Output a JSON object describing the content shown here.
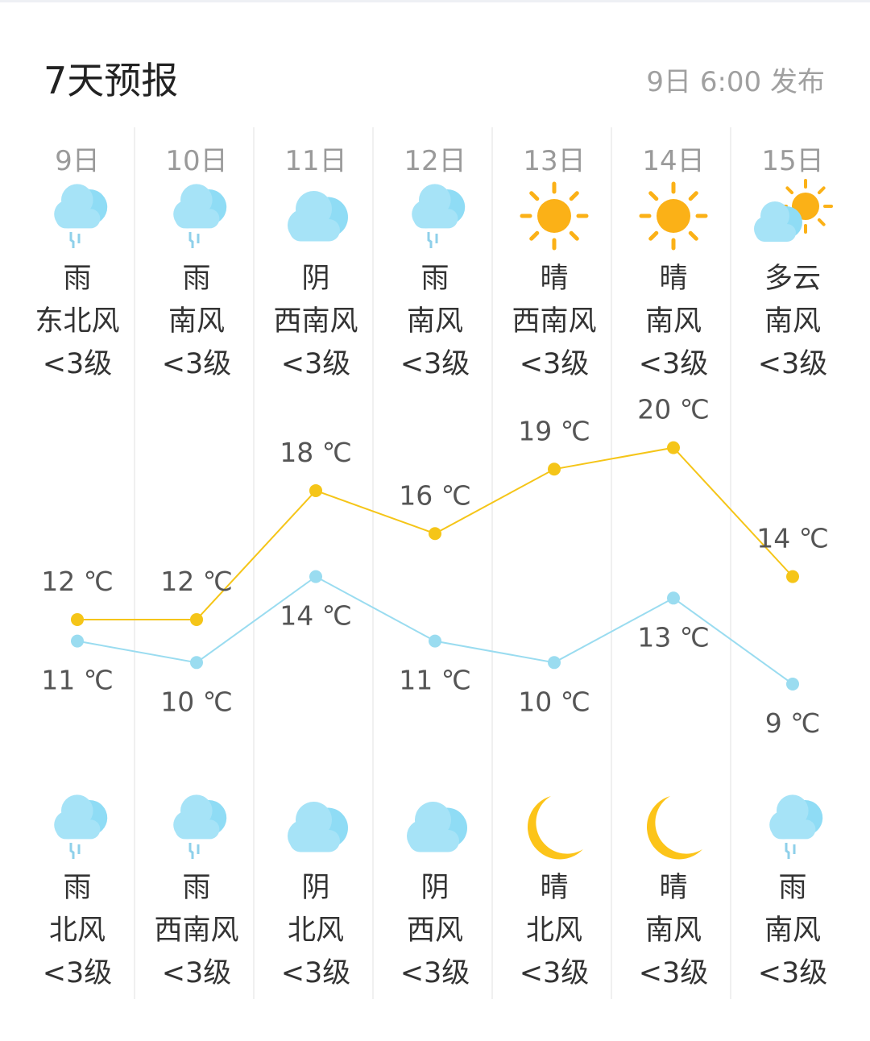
{
  "header": {
    "title": "7天预报",
    "published": "9日 6:00 发布"
  },
  "colors": {
    "high_line": "#f5c518",
    "low_line": "#9adcf0",
    "sun": "#fbb117",
    "cloud": "#a6e3f7",
    "moon": "#fcc419"
  },
  "days": [
    {
      "date": "9日",
      "day": {
        "icon": "rain-icon",
        "weather": "雨",
        "wind": "东北风",
        "level": "<3级"
      },
      "night": {
        "icon": "rain-icon",
        "weather": "雨",
        "wind": "北风",
        "level": "<3级"
      },
      "high": 12,
      "high_label": "12 ℃",
      "low": 11,
      "low_label": "11 ℃"
    },
    {
      "date": "10日",
      "day": {
        "icon": "rain-icon",
        "weather": "雨",
        "wind": "南风",
        "level": "<3级"
      },
      "night": {
        "icon": "rain-icon",
        "weather": "雨",
        "wind": "西南风",
        "level": "<3级"
      },
      "high": 12,
      "high_label": "12 ℃",
      "low": 10,
      "low_label": "10 ℃"
    },
    {
      "date": "11日",
      "day": {
        "icon": "cloud-icon",
        "weather": "阴",
        "wind": "西南风",
        "level": "<3级"
      },
      "night": {
        "icon": "cloud-icon",
        "weather": "阴",
        "wind": "北风",
        "level": "<3级"
      },
      "high": 18,
      "high_label": "18 ℃",
      "low": 14,
      "low_label": "14 ℃"
    },
    {
      "date": "12日",
      "day": {
        "icon": "rain-icon",
        "weather": "雨",
        "wind": "南风",
        "level": "<3级"
      },
      "night": {
        "icon": "cloud-icon",
        "weather": "阴",
        "wind": "西风",
        "level": "<3级"
      },
      "high": 16,
      "high_label": "16 ℃",
      "low": 11,
      "low_label": "11 ℃"
    },
    {
      "date": "13日",
      "day": {
        "icon": "sun-icon",
        "weather": "晴",
        "wind": "西南风",
        "level": "<3级"
      },
      "night": {
        "icon": "moon-icon",
        "weather": "晴",
        "wind": "北风",
        "level": "<3级"
      },
      "high": 19,
      "high_label": "19 ℃",
      "low": 10,
      "low_label": "10 ℃"
    },
    {
      "date": "14日",
      "day": {
        "icon": "sun-icon",
        "weather": "晴",
        "wind": "南风",
        "level": "<3级"
      },
      "night": {
        "icon": "moon-icon",
        "weather": "晴",
        "wind": "南风",
        "level": "<3级"
      },
      "high": 20,
      "high_label": "20 ℃",
      "low": 13,
      "low_label": "13 ℃"
    },
    {
      "date": "15日",
      "day": {
        "icon": "partly-cloudy-icon",
        "weather": "多云",
        "wind": "南风",
        "level": "<3级"
      },
      "night": {
        "icon": "rain-icon",
        "weather": "雨",
        "wind": "南风",
        "level": "<3级"
      },
      "high": 14,
      "high_label": "14 ℃",
      "low": 9,
      "low_label": "9 ℃"
    }
  ]
}
